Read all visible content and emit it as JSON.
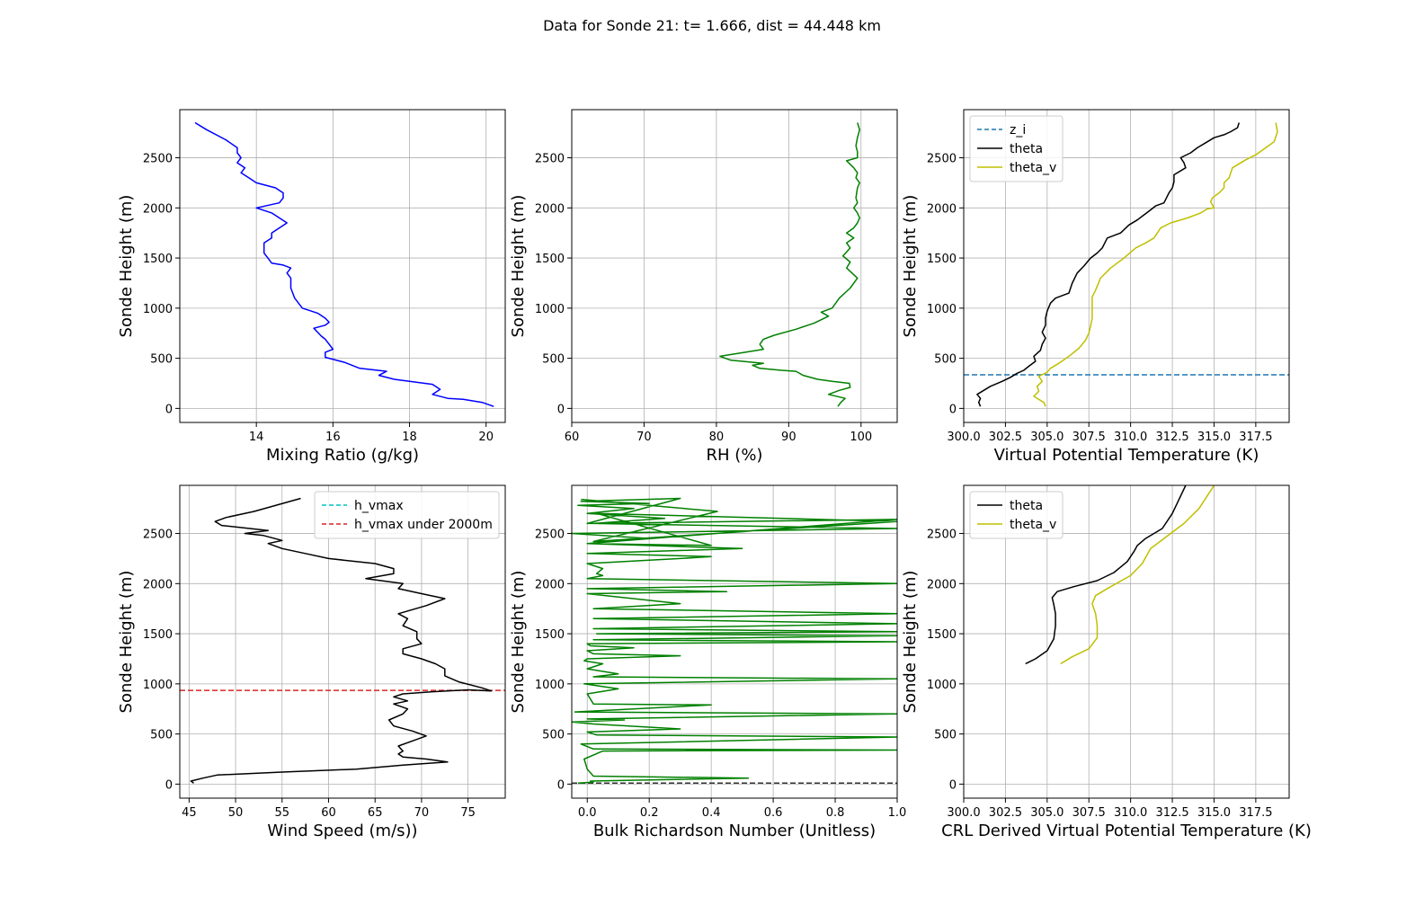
{
  "suptitle": "Data for Sonde 21: t= 1.666, dist = 44.448 km",
  "chart_data": [
    {
      "type": "line",
      "xlabel": "Mixing Ratio (g/kg)",
      "ylabel": "Sonde Height (m)",
      "xlim": [
        12.0,
        20.5
      ],
      "ylim": [
        -140,
        2980
      ],
      "xticks": [
        14,
        16,
        18,
        20
      ],
      "yticks": [
        0,
        500,
        1000,
        1500,
        2000,
        2500
      ],
      "grid": true,
      "legend": null,
      "series": [
        {
          "color": "#0000ff",
          "dash": "",
          "x": [
            20.2,
            19.9,
            19.4,
            19.0,
            18.6,
            18.8,
            18.6,
            18.2,
            17.6,
            17.2,
            17.4,
            16.7,
            16.5,
            16.3,
            15.8,
            15.8,
            16.0,
            15.9,
            15.8,
            15.7,
            15.6,
            15.5,
            15.8,
            15.9,
            15.8,
            15.6,
            15.2,
            15.0,
            14.9,
            14.9,
            14.8,
            14.9,
            14.7,
            14.4,
            14.3,
            14.2,
            14.2,
            14.4,
            14.4,
            14.6,
            14.8,
            14.4,
            14.0,
            14.6,
            14.7,
            14.7,
            14.5,
            14.0,
            13.8,
            13.6,
            13.7,
            13.5,
            13.6,
            13.5,
            13.5,
            13.2,
            12.7,
            12.4
          ],
          "y": [
            20,
            60,
            90,
            100,
            140,
            190,
            240,
            260,
            290,
            330,
            370,
            400,
            430,
            460,
            510,
            560,
            590,
            640,
            690,
            720,
            760,
            800,
            830,
            860,
            900,
            950,
            1000,
            1100,
            1200,
            1300,
            1350,
            1400,
            1430,
            1450,
            1500,
            1550,
            1650,
            1700,
            1750,
            1800,
            1850,
            1950,
            2000,
            2050,
            2100,
            2150,
            2200,
            2250,
            2300,
            2350,
            2400,
            2450,
            2500,
            2550,
            2600,
            2680,
            2780,
            2850
          ]
        }
      ]
    },
    {
      "type": "line",
      "xlabel": "RH (%)",
      "ylabel": "Sonde Height (m)",
      "xlim": [
        60,
        105
      ],
      "ylim": [
        -140,
        2980
      ],
      "xticks": [
        60,
        70,
        80,
        90,
        100
      ],
      "yticks": [
        0,
        500,
        1000,
        1500,
        2000,
        2500
      ],
      "grid": true,
      "legend": null,
      "series": [
        {
          "color": "#008000",
          "dash": "",
          "x": [
            96.8,
            97.2,
            97.8,
            95.5,
            97.0,
            98.5,
            98.4,
            96.0,
            94.0,
            92.0,
            91.0,
            89.0,
            86.0,
            85.0,
            86.5,
            82.0,
            80.5,
            84.0,
            86.5,
            86.0,
            86.5,
            88.0,
            91.0,
            93.5,
            95.5,
            94.5,
            96.0,
            96.5,
            97.0,
            98.5,
            99.5,
            98.0,
            98.5,
            97.5,
            98.5,
            98.0,
            99.0,
            98.0,
            99.0,
            99.5,
            99.8,
            99.5,
            99.0,
            99.5,
            99.3,
            99.5,
            99.8,
            99.3,
            99.5,
            99.0,
            98.0,
            99.5,
            99.5,
            99.3,
            99.5,
            99.8,
            99.5
          ],
          "y": [
            20,
            60,
            100,
            140,
            180,
            210,
            250,
            270,
            290,
            330,
            370,
            380,
            400,
            430,
            450,
            480,
            520,
            560,
            590,
            640,
            690,
            730,
            790,
            850,
            920,
            960,
            1000,
            1050,
            1100,
            1200,
            1300,
            1400,
            1460,
            1520,
            1600,
            1650,
            1700,
            1750,
            1800,
            1850,
            1900,
            1950,
            2000,
            2050,
            2100,
            2200,
            2250,
            2300,
            2350,
            2400,
            2470,
            2500,
            2560,
            2620,
            2700,
            2780,
            2850
          ]
        }
      ]
    },
    {
      "type": "line",
      "xlabel": "Virtual Potential Temperature (K)",
      "ylabel": "Sonde Height (m)",
      "xlim": [
        300.0,
        319.5
      ],
      "ylim": [
        -140,
        2980
      ],
      "xticks": [
        300.0,
        302.5,
        305.0,
        307.5,
        310.0,
        312.5,
        315.0,
        317.5
      ],
      "xtick_labels": [
        "300.0",
        "302.5",
        "305.0",
        "307.5",
        "310.0",
        "312.5",
        "315.0",
        "317.5"
      ],
      "yticks": [
        0,
        500,
        1000,
        1500,
        2000,
        2500
      ],
      "grid": true,
      "legend": "upper left",
      "hlines": [
        {
          "name": "z_i",
          "y": 335,
          "color": "#1f77b4"
        }
      ],
      "series": [
        {
          "name": "theta",
          "color": "#000000",
          "dash": "",
          "x": [
            301.0,
            300.9,
            301.0,
            300.8,
            301.2,
            301.6,
            302.3,
            302.8,
            303.2,
            303.6,
            303.9,
            304.3,
            304.2,
            304.6,
            304.7,
            304.9,
            304.7,
            304.9,
            304.9,
            305.0,
            305.2,
            305.5,
            306.3,
            306.5,
            306.8,
            307.2,
            307.6,
            308.0,
            308.3,
            308.6,
            309.4,
            309.9,
            310.4,
            310.8,
            311.2,
            311.5,
            312.0,
            312.3,
            312.5,
            312.6,
            312.6,
            313.3,
            313.2,
            313.0,
            313.6,
            314.0,
            314.5,
            315.0,
            315.6,
            316.0,
            316.4,
            316.5
          ],
          "y": [
            20,
            60,
            100,
            140,
            180,
            220,
            270,
            310,
            350,
            380,
            420,
            470,
            520,
            580,
            640,
            700,
            760,
            830,
            900,
            970,
            1050,
            1100,
            1150,
            1250,
            1350,
            1420,
            1500,
            1550,
            1600,
            1700,
            1750,
            1830,
            1880,
            1930,
            1980,
            2020,
            2050,
            2150,
            2200,
            2260,
            2330,
            2400,
            2450,
            2500,
            2550,
            2600,
            2650,
            2700,
            2730,
            2760,
            2800,
            2850
          ]
        },
        {
          "name": "theta_v",
          "color": "#bfbf00",
          "dash": "",
          "x": [
            304.9,
            304.8,
            304.2,
            304.5,
            304.4,
            304.7,
            304.5,
            305.0,
            305.2,
            305.7,
            306.3,
            306.9,
            307.3,
            307.5,
            307.6,
            307.7,
            307.7,
            307.7,
            307.7,
            307.9,
            308.2,
            308.8,
            309.2,
            309.6,
            310.3,
            310.9,
            311.4,
            311.8,
            312.4,
            313.4,
            314.2,
            314.6,
            315.0,
            314.8,
            314.9,
            315.3,
            315.6,
            315.6,
            315.9,
            316.0,
            316.1,
            316.9,
            317.5,
            318.1,
            318.6,
            318.8,
            318.7
          ],
          "y": [
            20,
            60,
            120,
            170,
            220,
            270,
            320,
            360,
            400,
            450,
            520,
            600,
            680,
            750,
            820,
            900,
            970,
            1050,
            1110,
            1180,
            1300,
            1400,
            1450,
            1500,
            1600,
            1650,
            1700,
            1800,
            1850,
            1900,
            1950,
            1990,
            2000,
            2060,
            2100,
            2150,
            2200,
            2250,
            2300,
            2350,
            2400,
            2480,
            2530,
            2600,
            2660,
            2760,
            2850
          ]
        }
      ]
    },
    {
      "type": "line",
      "xlabel": "Wind Speed (m/s))",
      "ylabel": "Sonde Height (m)",
      "xlim": [
        44.0,
        79.0
      ],
      "ylim": [
        -140,
        2980
      ],
      "xticks": [
        45,
        50,
        55,
        60,
        65,
        70,
        75
      ],
      "yticks": [
        0,
        500,
        1000,
        1500,
        2000,
        2500
      ],
      "grid": true,
      "legend": "upper right",
      "hlines": [
        {
          "name": "h_vmax",
          "y": null,
          "color": "#00bfbf"
        },
        {
          "name": "h_vmax under 2000m",
          "y": 935,
          "color": "#d62728"
        }
      ],
      "series": [
        {
          "color": "#000000",
          "dash": "",
          "x": [
            45.5,
            45.2,
            46.5,
            48.0,
            55.0,
            63.0,
            68.0,
            72.8,
            70.5,
            68.0,
            67.5,
            68.0,
            67.5,
            69.0,
            70.5,
            69.0,
            67.0,
            66.5,
            68.0,
            68.5,
            67.0,
            68.5,
            67.0,
            68.0,
            71.0,
            75.0,
            77.5,
            76.5,
            74.0,
            72.5,
            72.5,
            71.5,
            70.0,
            68.0,
            68.0,
            70.0,
            69.5,
            69.5,
            68.0,
            68.5,
            67.5,
            70.5,
            72.5,
            70.0,
            67.5,
            68.0,
            64.0,
            67.0,
            67.0,
            65.0,
            60.0,
            57.5,
            55.0,
            53.5,
            55.0,
            53.0,
            51.0,
            53.5,
            48.5,
            47.8,
            49.0,
            52.0,
            57.0
          ],
          "y": [
            10,
            30,
            60,
            90,
            120,
            150,
            190,
            220,
            250,
            270,
            300,
            330,
            380,
            430,
            480,
            530,
            580,
            640,
            700,
            750,
            800,
            830,
            870,
            900,
            920,
            940,
            930,
            960,
            1020,
            1080,
            1150,
            1200,
            1250,
            1300,
            1350,
            1400,
            1450,
            1520,
            1580,
            1650,
            1700,
            1780,
            1850,
            1900,
            1950,
            2000,
            2050,
            2100,
            2150,
            2200,
            2250,
            2300,
            2350,
            2400,
            2430,
            2480,
            2500,
            2530,
            2580,
            2620,
            2660,
            2720,
            2850
          ]
        }
      ]
    },
    {
      "type": "line",
      "xlabel": "Bulk Richardson Number (Unitless)",
      "ylabel": "Sonde Height (m)",
      "xlim": [
        -0.05,
        1.0
      ],
      "ylim": [
        -140,
        2980
      ],
      "xticks": [
        0.0,
        0.2,
        0.4,
        0.6,
        0.8,
        1.0
      ],
      "xtick_labels": [
        "0.0",
        "0.2",
        "0.4",
        "0.6",
        "0.8",
        "1.0"
      ],
      "yticks": [
        0,
        500,
        1000,
        1500,
        2000,
        2500
      ],
      "grid": true,
      "legend": null,
      "hlines": [
        {
          "name": "",
          "y": 10,
          "color": "#333333"
        }
      ],
      "series": [
        {
          "color": "#008000",
          "dash": "",
          "x": [
            -0.03,
            0.02,
            0.01,
            0.52,
            0.02,
            0.0,
            -0.01,
            0.05,
            1.0,
            0.02,
            -0.02,
            1.0,
            0.03,
            0.0,
            0.3,
            0.02,
            -0.05,
            0.12,
            0.0,
            1.0,
            -0.04,
            0.4,
            0.02,
            0.0,
            0.1,
            -0.01,
            1.0,
            0.02,
            0.1,
            0.0,
            0.05,
            -0.01,
            0.0,
            0.3,
            0.02,
            0.0,
            0.15,
            0.01,
            0.0,
            1.0,
            0.02,
            1.0,
            0.03,
            1.0,
            0.02,
            1.0,
            0.02,
            1.0,
            0.02,
            0.3,
            0.0,
            0.45,
            0.0,
            1.0,
            0.0,
            0.05,
            0.03,
            0.05,
            0.0,
            0.3,
            0.4,
            0.0,
            0.5,
            0.0,
            0.2,
            -0.05,
            1.0,
            0.02,
            0.25,
            0.0,
            0.15,
            -0.03,
            0.2,
            -0.02,
            0.3,
            0.0,
            1.0,
            0.0,
            0.4,
            0.03,
            1.0,
            0.02,
            0.42,
            -0.02
          ],
          "y": [
            10,
            20,
            30,
            60,
            80,
            150,
            250,
            330,
            340,
            350,
            400,
            470,
            490,
            520,
            550,
            600,
            620,
            640,
            650,
            700,
            720,
            790,
            800,
            900,
            950,
            1000,
            1050,
            1070,
            1100,
            1150,
            1200,
            1230,
            1250,
            1280,
            1300,
            1330,
            1360,
            1380,
            1400,
            1420,
            1440,
            1480,
            1500,
            1520,
            1550,
            1600,
            1650,
            1700,
            1750,
            1800,
            1900,
            1920,
            1950,
            2000,
            2050,
            2080,
            2100,
            2150,
            2200,
            2250,
            2270,
            2300,
            2350,
            2400,
            2450,
            2500,
            2550,
            2600,
            2650,
            2700,
            2750,
            2780,
            2800,
            2820,
            2850,
            2600,
            2640,
            2400,
            2380,
            2700,
            2620,
            2420,
            2720,
            2840
          ]
        }
      ]
    },
    {
      "type": "line",
      "xlabel": "CRL Derived Virtual Potential Temperature (K)",
      "ylabel": "Sonde Height (m)",
      "xlim": [
        300.0,
        319.5
      ],
      "ylim": [
        -140,
        2980
      ],
      "xticks": [
        300.0,
        302.5,
        305.0,
        307.5,
        310.0,
        312.5,
        315.0,
        317.5
      ],
      "xtick_labels": [
        "300.0",
        "302.5",
        "305.0",
        "307.5",
        "310.0",
        "312.5",
        "315.0",
        "317.5"
      ],
      "yticks": [
        0,
        500,
        1000,
        1500,
        2000,
        2500
      ],
      "grid": true,
      "legend": "upper left",
      "series": [
        {
          "name": "theta",
          "color": "#000000",
          "dash": "",
          "x": [
            303.7,
            304.3,
            305.0,
            305.4,
            305.5,
            305.5,
            305.4,
            305.3,
            305.6,
            306.6,
            308.0,
            309.0,
            309.8,
            310.2,
            310.4,
            310.9,
            311.9,
            312.5,
            313.3
          ],
          "y": [
            1200,
            1250,
            1330,
            1450,
            1580,
            1700,
            1790,
            1860,
            1920,
            1970,
            2030,
            2110,
            2220,
            2320,
            2380,
            2450,
            2550,
            2700,
            2980
          ]
        },
        {
          "name": "theta_v",
          "color": "#bfbf00",
          "dash": "",
          "x": [
            305.8,
            306.5,
            307.5,
            308.0,
            308.0,
            307.9,
            307.7,
            307.9,
            308.7,
            310.0,
            310.7,
            311.2,
            312.0,
            313.2,
            314.1,
            315.0
          ],
          "y": [
            1200,
            1270,
            1350,
            1460,
            1580,
            1700,
            1800,
            1880,
            1960,
            2080,
            2200,
            2350,
            2450,
            2600,
            2750,
            2980
          ]
        }
      ]
    }
  ]
}
